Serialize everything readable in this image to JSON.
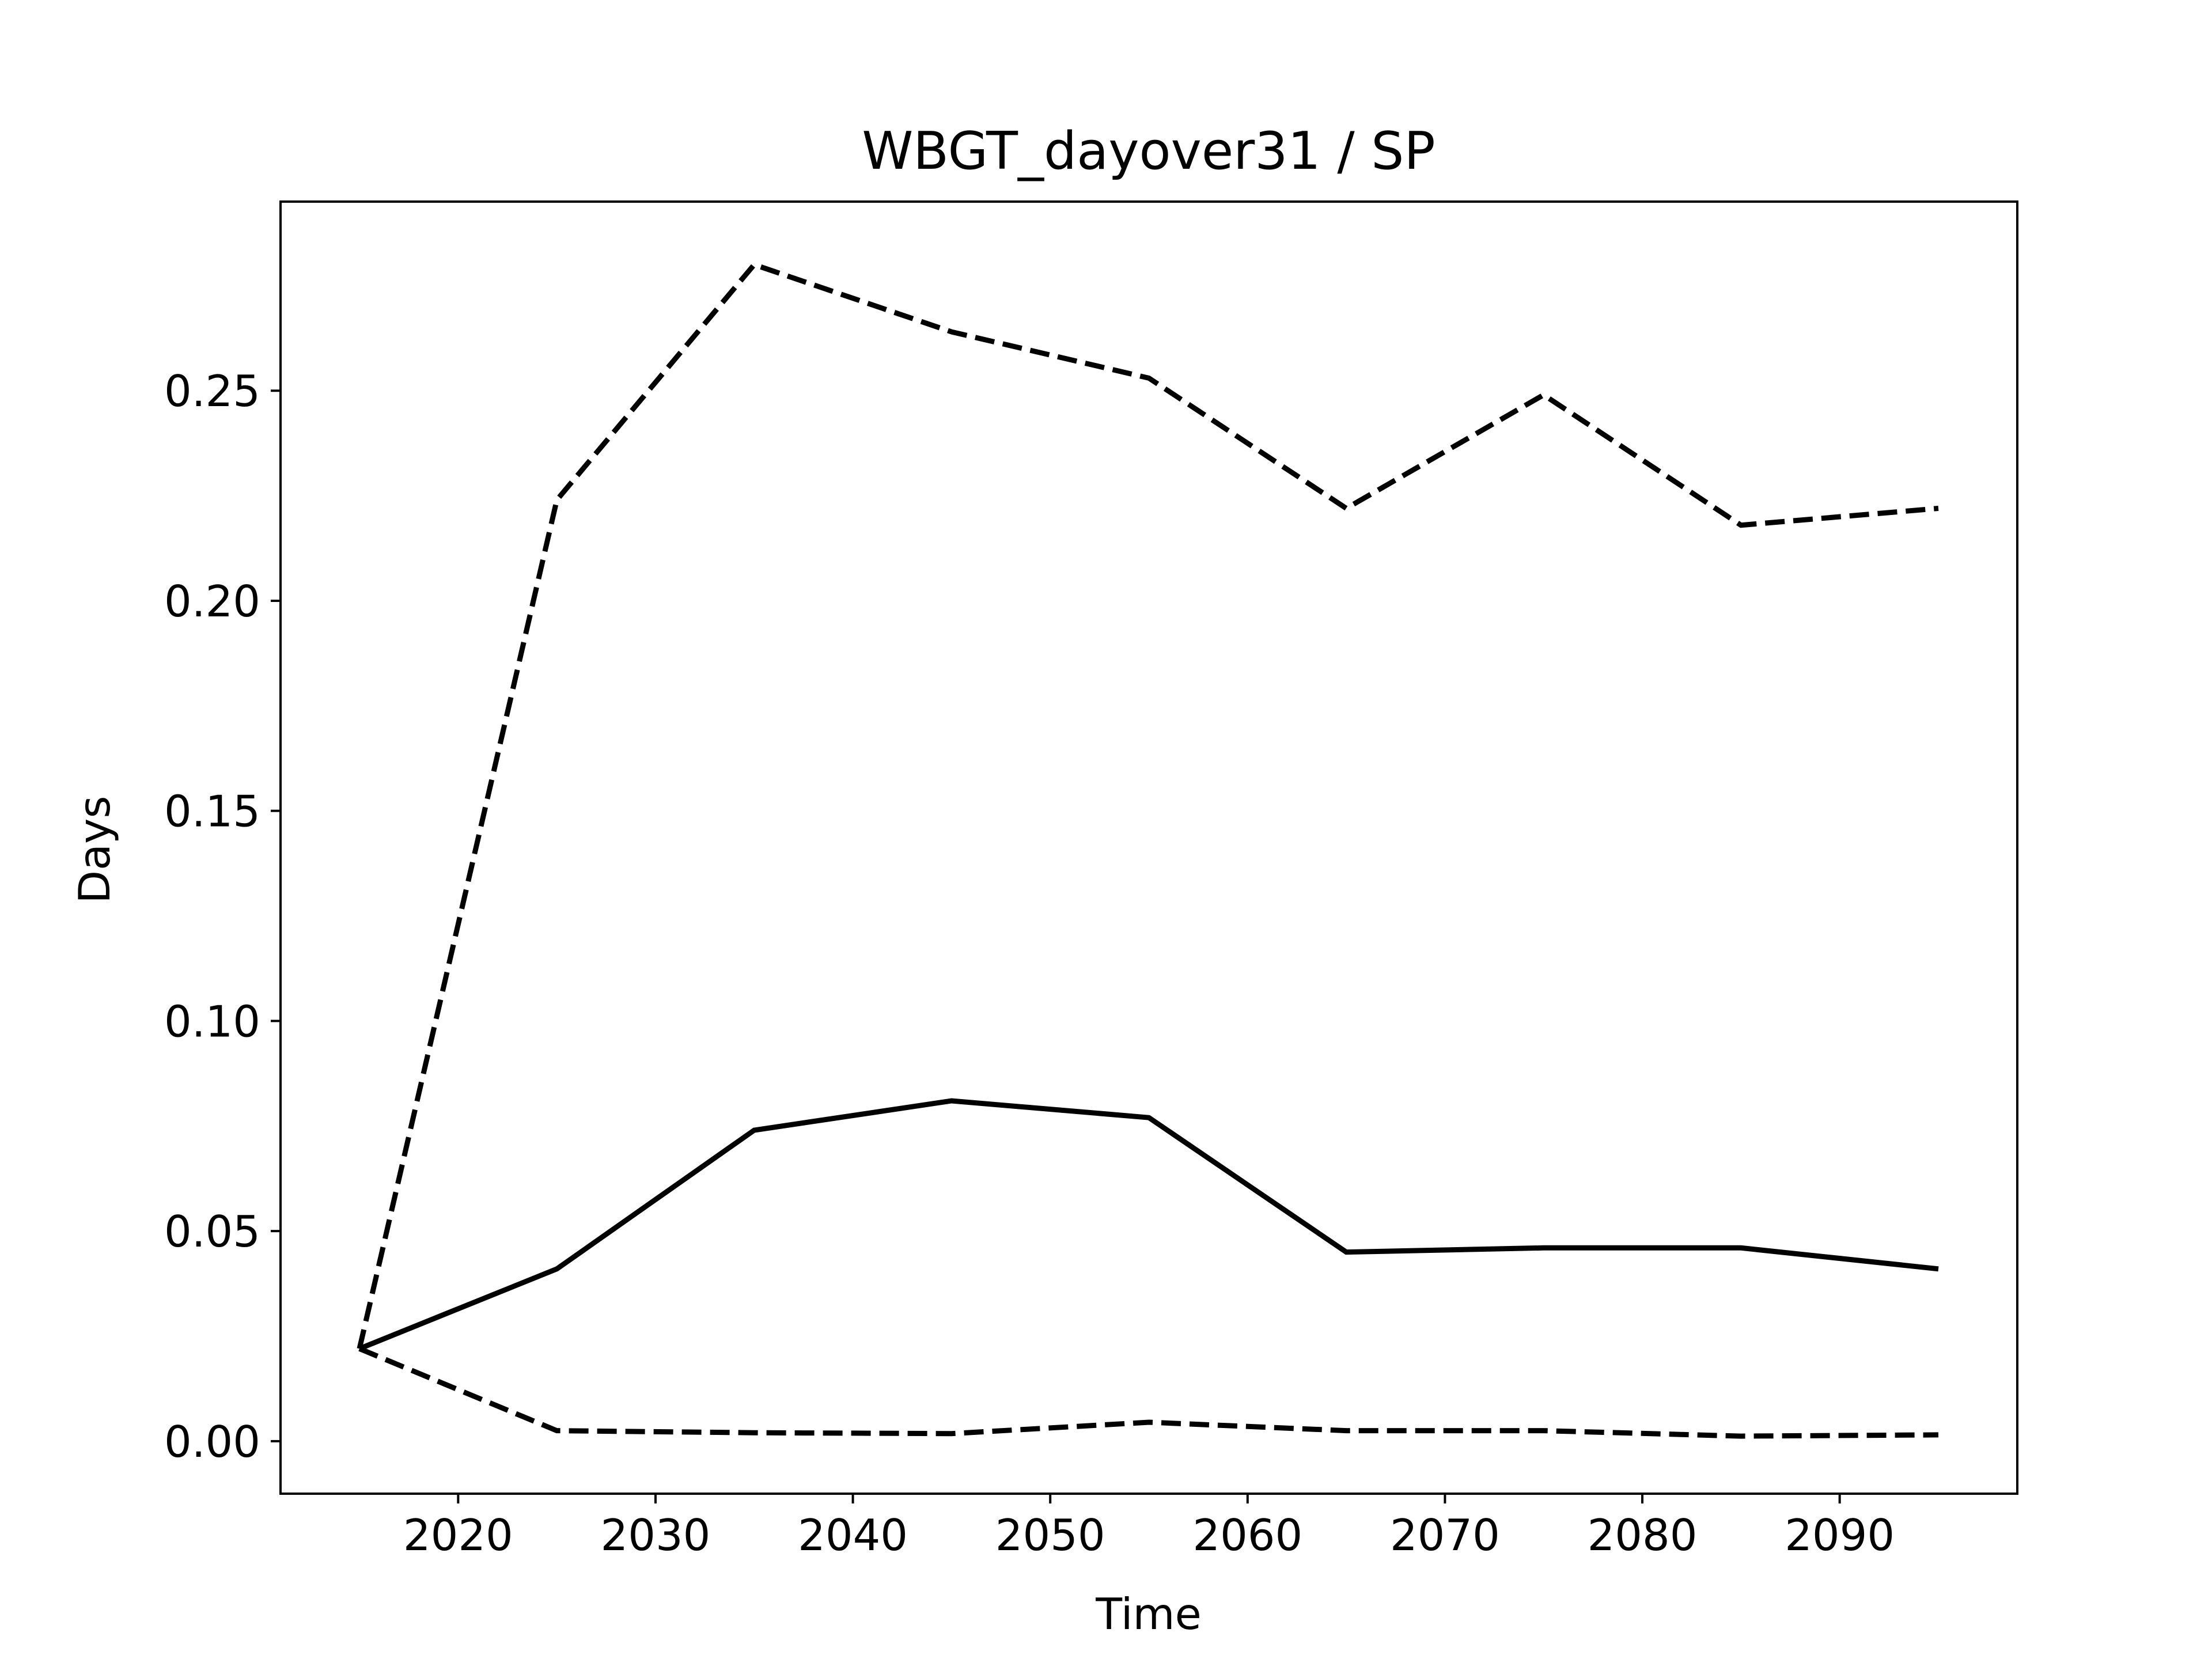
{
  "chart_data": {
    "type": "line",
    "title": "WBGT_dayover31 / SP",
    "xlabel": "Time",
    "ylabel": "Days",
    "xlim": [
      2011,
      2099
    ],
    "ylim": [
      -0.0125,
      0.295
    ],
    "xticks": [
      2020,
      2030,
      2040,
      2050,
      2060,
      2070,
      2080,
      2090
    ],
    "xtick_labels": [
      "2020",
      "2030",
      "2040",
      "2050",
      "2060",
      "2070",
      "2080",
      "2090"
    ],
    "yticks": [
      0.0,
      0.05,
      0.1,
      0.15,
      0.2,
      0.25
    ],
    "ytick_labels": [
      "0.00",
      "0.05",
      "0.10",
      "0.15",
      "0.20",
      "0.25"
    ],
    "grid": false,
    "legend": "none",
    "x": [
      2015,
      2025,
      2035,
      2045,
      2055,
      2065,
      2075,
      2085,
      2095
    ],
    "series": [
      {
        "style": "solid",
        "color": "#000000",
        "values": [
          0.022,
          0.041,
          0.074,
          0.081,
          0.077,
          0.045,
          0.046,
          0.046,
          0.041
        ]
      },
      {
        "style": "dashed",
        "color": "#000000",
        "values": [
          0.022,
          0.224,
          0.28,
          0.264,
          0.253,
          0.222,
          0.249,
          0.218,
          0.222
        ]
      },
      {
        "style": "dashed",
        "color": "#000000",
        "values": [
          0.022,
          0.0025,
          0.002,
          0.0018,
          0.0045,
          0.0025,
          0.0025,
          0.0012,
          0.0015
        ]
      }
    ]
  }
}
